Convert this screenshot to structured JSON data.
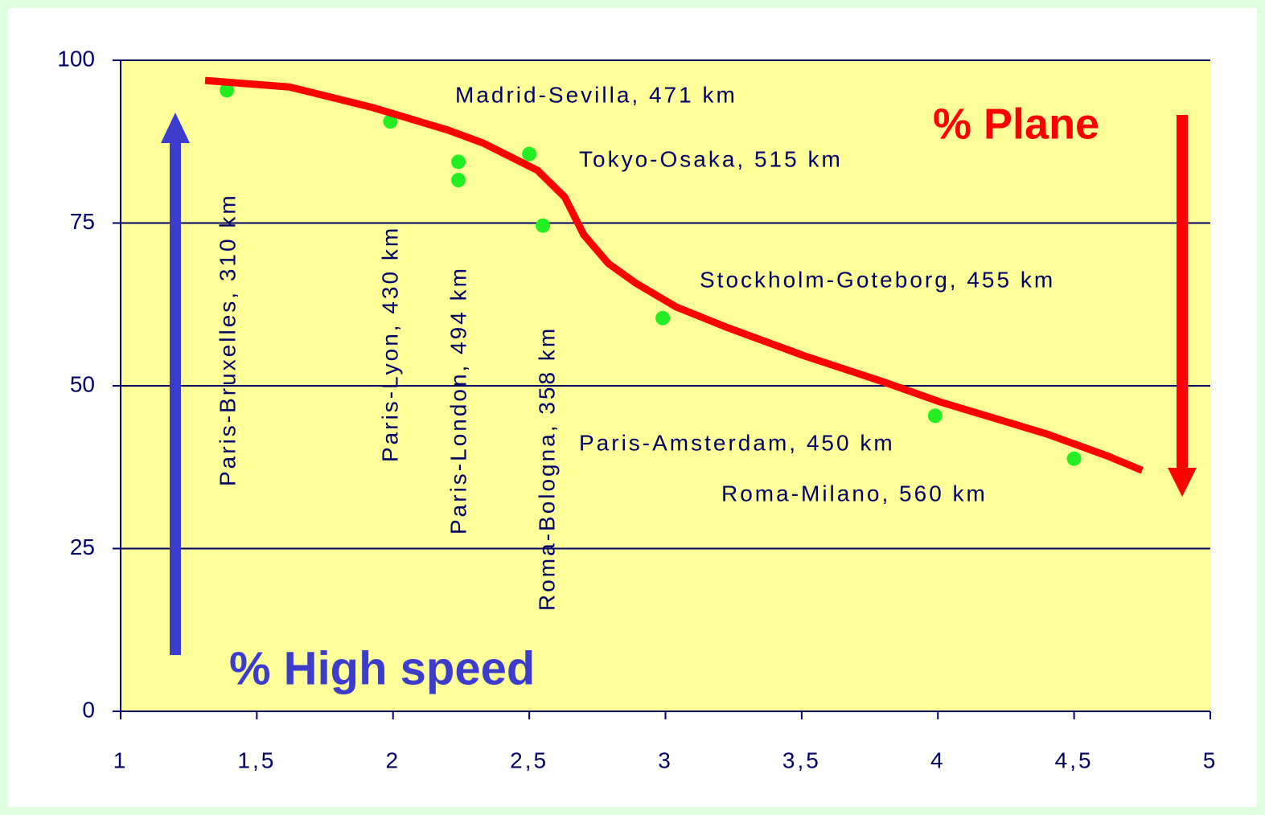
{
  "chart_data": {
    "type": "scatter",
    "series": [
      {
        "color": "#22ee22",
        "x": [
          1.39,
          1.99,
          2.24,
          2.24,
          2.5,
          2.55,
          2.99,
          3.99,
          4.5
        ],
        "values": [
          95.4,
          90.6,
          84.4,
          81.6,
          85.6,
          74.6,
          60.4,
          45.4,
          38.8
        ]
      },
      {
        "type": "line",
        "color": "#ff0000",
        "x": [
          1.31,
          1.62,
          1.92,
          2.2,
          2.33,
          2.53,
          2.63,
          2.7,
          2.79,
          2.89,
          3.04,
          3.23,
          3.51,
          3.8,
          4.01,
          4.4,
          4.63,
          4.75
        ],
        "values": [
          96.9,
          95.9,
          92.8,
          89.3,
          87.3,
          83.1,
          79.0,
          73.2,
          68.8,
          65.8,
          62.1,
          58.9,
          54.6,
          50.6,
          47.5,
          42.6,
          39.1,
          37.0
        ]
      }
    ],
    "annotations": [
      "Paris-Bruxelles, 310 km",
      "Paris-Lyon, 430 km",
      "Paris-London, 494 km",
      "Roma-Bologna, 358 km",
      "Madrid-Sevilla, 471 km",
      "Tokyo-Osaka, 515 km",
      "Stockholm-Goteborg, 455 km",
      "Paris-Amsterdam, 450 km",
      "Roma-Milano, 560 km",
      "% Plane",
      "% High speed"
    ],
    "xlim": [
      1,
      5
    ],
    "xticks": [
      1,
      {
        "value": 1.5,
        "label": "1,5"
      },
      2,
      {
        "value": 2.5,
        "label": "2,5"
      },
      3,
      {
        "value": 3.5,
        "label": "3,5"
      },
      4,
      {
        "value": 4.5,
        "label": "4,5"
      },
      5
    ],
    "ylim": [
      0,
      100
    ],
    "yticks": [
      0,
      25,
      50,
      75,
      100
    ],
    "grid": true
  }
}
